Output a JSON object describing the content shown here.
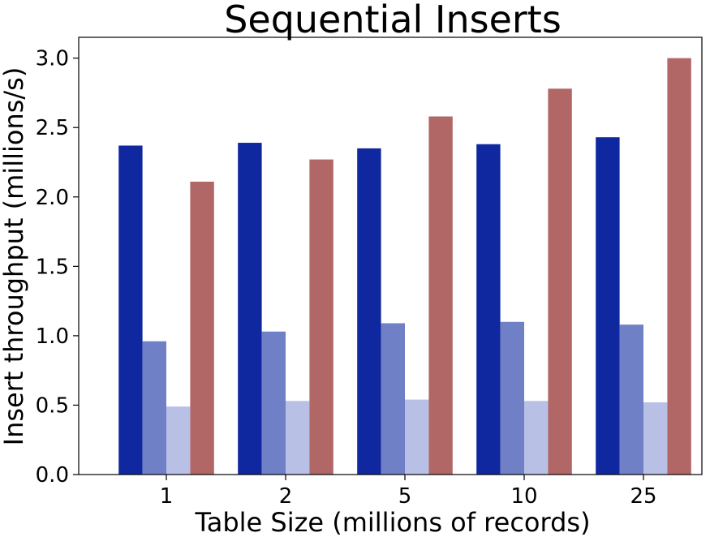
{
  "chart_data": {
    "type": "bar",
    "title": "Sequential Inserts",
    "xlabel": "Table Size (millions of records)",
    "ylabel": "Insert throughput (millions/s)",
    "categories": [
      "1",
      "2",
      "5",
      "10",
      "25"
    ],
    "ylim": [
      0,
      3.15
    ],
    "yticks": [
      "0.0",
      "0.5",
      "1.0",
      "1.5",
      "2.0",
      "2.5",
      "3.0"
    ],
    "grid": false,
    "legend": "none",
    "series": [
      {
        "color": "#10289f",
        "values": [
          2.37,
          2.39,
          2.35,
          2.38,
          2.43
        ]
      },
      {
        "color": "#7080c6",
        "values": [
          0.96,
          1.03,
          1.09,
          1.1,
          1.08
        ]
      },
      {
        "color": "#b8c0e6",
        "values": [
          0.49,
          0.53,
          0.54,
          0.53,
          0.52
        ]
      },
      {
        "color": "#b26767",
        "values": [
          2.11,
          2.27,
          2.58,
          2.78,
          3.0
        ]
      }
    ]
  }
}
